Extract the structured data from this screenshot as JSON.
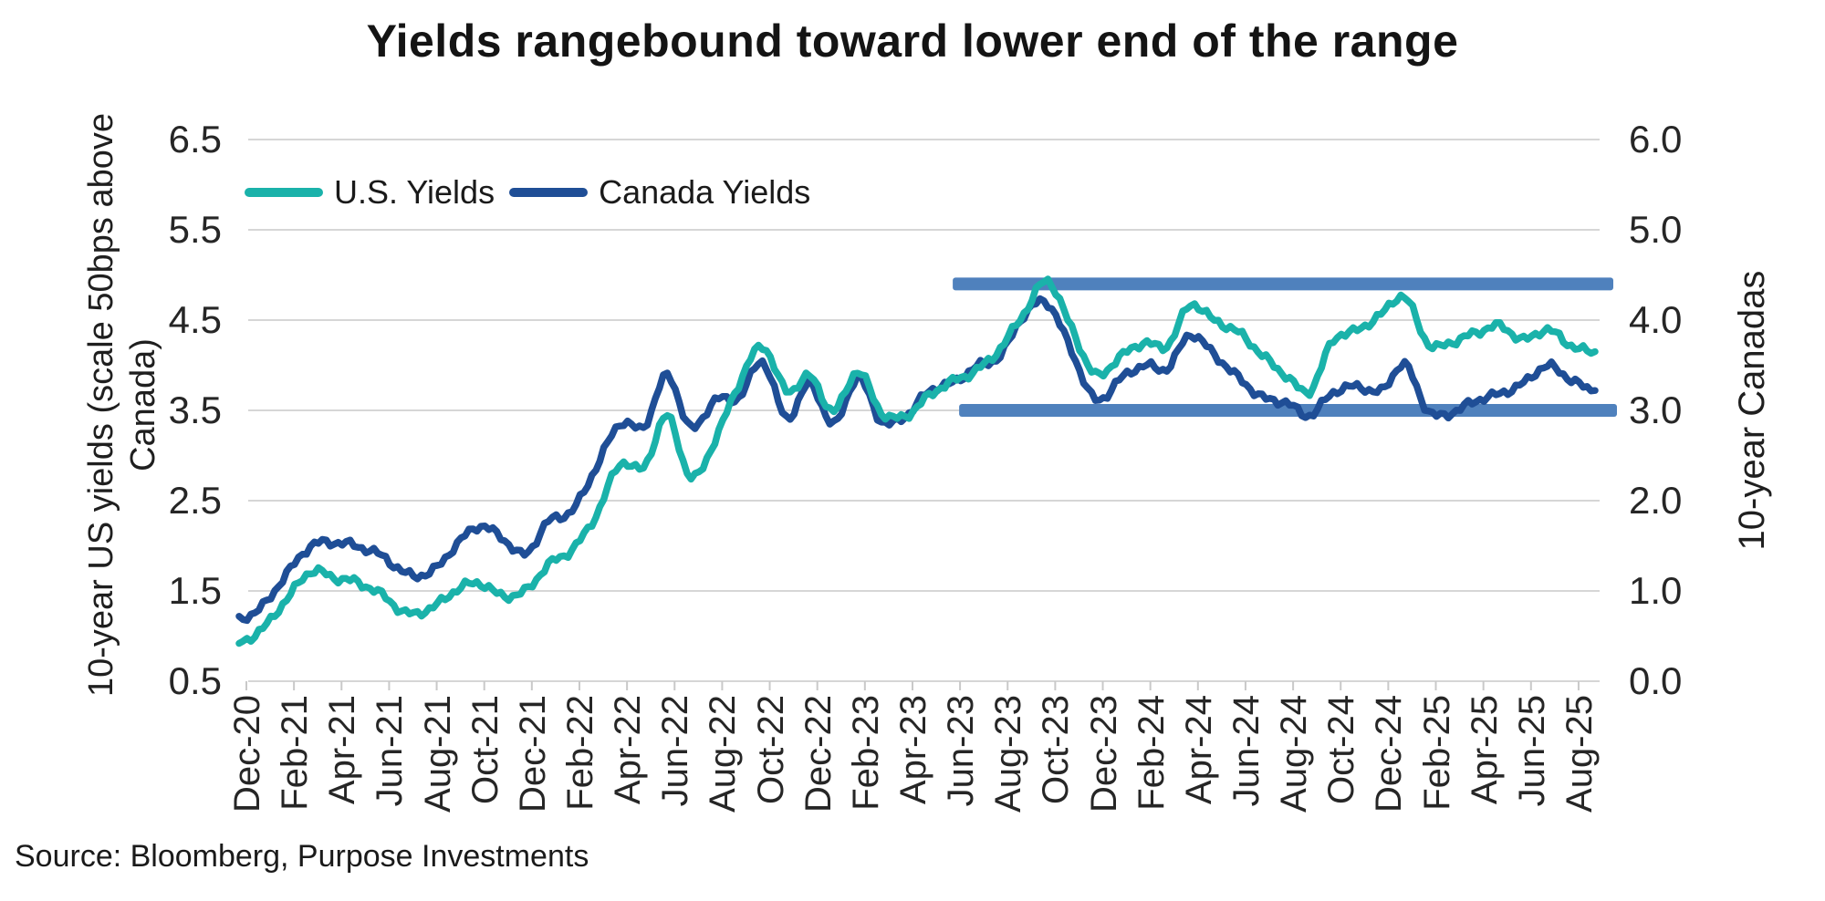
{
  "title": "Yields rangebound toward lower end of the range",
  "source": "Source: Bloomberg, Purpose Investments",
  "legend": {
    "us": {
      "label": "U.S. Yields",
      "color": "#1AB2AA"
    },
    "canada": {
      "label": "Canada Yields",
      "color": "#1F4E96"
    }
  },
  "colors": {
    "us_line": "#1AB2AA",
    "canada_line": "#1F4E96",
    "range_band": "#4F81BD",
    "gridline": "#D6D6D6",
    "tick_mark": "#C9C9C9",
    "text": "#1F1F1F"
  },
  "chart_data": {
    "type": "line",
    "title": "Yields rangebound toward lower end of the range",
    "grid": "horizontal-only",
    "legend_position": "top-left-inside",
    "left_axis": {
      "label": "10-year US yields (scale 50bps above Canada)",
      "ticks": [
        "6.5",
        "5.5",
        "4.5",
        "3.5",
        "2.5",
        "1.5",
        "0.5"
      ],
      "range": [
        0.5,
        6.5
      ]
    },
    "right_axis": {
      "label": "10-year Canadas",
      "ticks": [
        "6.0",
        "5.0",
        "4.0",
        "3.0",
        "2.0",
        "1.0",
        "0.0"
      ],
      "range": [
        0.0,
        6.0
      ]
    },
    "x_tick_labels": [
      "Dec-20",
      "Feb-21",
      "Apr-21",
      "Jun-21",
      "Aug-21",
      "Oct-21",
      "Dec-21",
      "Feb-22",
      "Apr-22",
      "Jun-22",
      "Aug-22",
      "Oct-22",
      "Dec-22",
      "Feb-23",
      "Apr-23",
      "Jun-23",
      "Aug-23",
      "Oct-23",
      "Dec-23",
      "Feb-24",
      "Apr-24",
      "Jun-24",
      "Aug-24",
      "Oct-24",
      "Dec-24",
      "Feb-25",
      "Apr-25",
      "Jun-25",
      "Aug-25"
    ],
    "months": [
      "Dec-20",
      "Jan-21",
      "Feb-21",
      "Mar-21",
      "Apr-21",
      "May-21",
      "Jun-21",
      "Jul-21",
      "Aug-21",
      "Sep-21",
      "Oct-21",
      "Nov-21",
      "Dec-21",
      "Jan-22",
      "Feb-22",
      "Mar-22",
      "Apr-22",
      "May-22",
      "Jun-22",
      "Jul-22",
      "Aug-22",
      "Sep-22",
      "Oct-22",
      "Nov-22",
      "Dec-22",
      "Jan-23",
      "Feb-23",
      "Mar-23",
      "Apr-23",
      "May-23",
      "Jun-23",
      "Jul-23",
      "Aug-23",
      "Sep-23",
      "Oct-23",
      "Nov-23",
      "Dec-23",
      "Jan-24",
      "Feb-24",
      "Mar-24",
      "Apr-24",
      "May-24",
      "Jun-24",
      "Jul-24",
      "Aug-24",
      "Sep-24",
      "Oct-24",
      "Nov-24",
      "Dec-24",
      "Jan-25",
      "Feb-25",
      "Mar-25",
      "Apr-25",
      "May-25",
      "Jun-25",
      "Jul-25",
      "Aug-25",
      "Sep-25"
    ],
    "series": [
      {
        "name": "U.S. Yields",
        "axis": "left",
        "color": "#1AB2AA",
        "values": [
          0.92,
          1.07,
          1.42,
          1.72,
          1.63,
          1.6,
          1.47,
          1.24,
          1.3,
          1.5,
          1.58,
          1.45,
          1.51,
          1.78,
          1.95,
          2.35,
          2.9,
          2.85,
          3.45,
          2.75,
          3.15,
          3.8,
          4.22,
          3.7,
          3.88,
          3.5,
          3.92,
          3.48,
          3.45,
          3.65,
          3.82,
          3.96,
          4.18,
          4.57,
          4.95,
          4.4,
          3.88,
          4.1,
          4.25,
          4.2,
          4.68,
          4.5,
          4.35,
          4.12,
          3.9,
          3.7,
          4.28,
          4.4,
          4.55,
          4.75,
          4.25,
          4.25,
          4.35,
          4.45,
          4.28,
          4.38,
          4.23,
          4.15
        ]
      },
      {
        "name": "Canada Yields",
        "axis": "right",
        "color": "#1F4E96",
        "values": [
          0.68,
          0.82,
          1.2,
          1.5,
          1.52,
          1.5,
          1.4,
          1.18,
          1.2,
          1.48,
          1.7,
          1.6,
          1.42,
          1.76,
          1.88,
          2.38,
          2.85,
          2.8,
          3.4,
          2.8,
          3.1,
          3.15,
          3.55,
          2.9,
          3.3,
          2.85,
          3.35,
          2.88,
          2.95,
          3.2,
          3.3,
          3.5,
          3.6,
          4.05,
          4.2,
          3.65,
          3.1,
          3.35,
          3.5,
          3.45,
          3.85,
          3.62,
          3.35,
          3.15,
          3.1,
          2.93,
          3.2,
          3.28,
          3.2,
          3.5,
          3.0,
          2.97,
          3.1,
          3.2,
          3.3,
          3.48,
          3.35,
          3.22
        ]
      }
    ],
    "range_band": {
      "color": "#4F81BD",
      "start_month": "Jun-23",
      "upper_value_right_scale": 4.4,
      "lower_value_right_scale": 3.0,
      "upper_value_left_scale": 4.9,
      "lower_value_left_scale": 3.5
    }
  }
}
